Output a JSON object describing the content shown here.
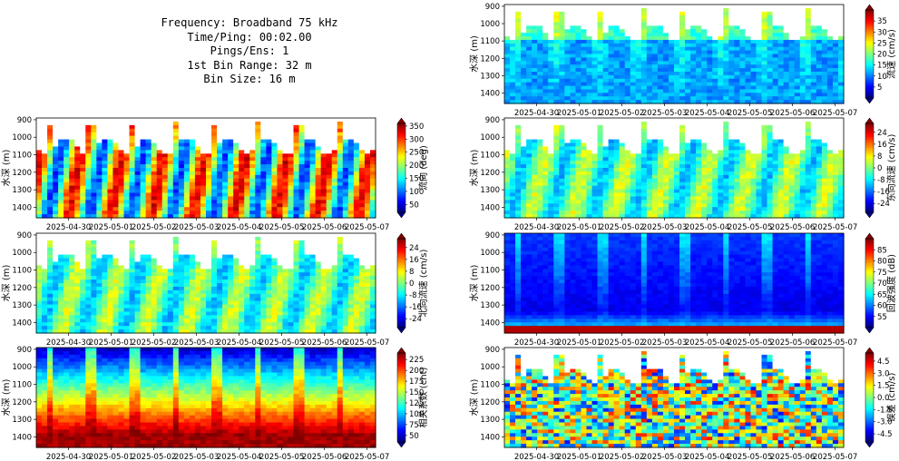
{
  "info": {
    "lines": [
      "Frequency: Broadband 75 kHz",
      "Time/Ping: 00:02.00",
      "Pings/Ens: 1",
      "1st Bin Range: 32 m",
      "Bin Size: 16 m"
    ]
  },
  "chart_data": [
    {
      "type": "heatmap",
      "id": "speed",
      "colormap": "jet",
      "ylabel": "水深 (m)",
      "cbar_label": "流速 (cm/s)",
      "x_ticks": [
        "2025-04-30",
        "2025-05-01",
        "2025-05-02",
        "2025-05-03",
        "2025-05-04",
        "2025-05-05",
        "2025-05-06",
        "2025-05-07"
      ],
      "y_ticks": [
        900,
        1000,
        1100,
        1200,
        1300,
        1400
      ],
      "ylim": [
        1460,
        890
      ],
      "cbar_ticks": [
        "5",
        "10",
        "15",
        "20",
        "25",
        "30",
        "35"
      ],
      "cbar_range": [
        0,
        40
      ],
      "cbar_extend": "both",
      "dominant": "blue-cyan, gaps at top"
    },
    {
      "type": "heatmap",
      "id": "direction",
      "colormap": "jet",
      "ylabel": "水深 (m)",
      "cbar_label": "流向 (deg)",
      "x_ticks": [
        "2025-04-30",
        "2025-05-01",
        "2025-05-02",
        "2025-05-03",
        "2025-05-04",
        "2025-05-05",
        "2025-05-06",
        "2025-05-07"
      ],
      "y_ticks": [
        900,
        1000,
        1100,
        1200,
        1300,
        1400
      ],
      "ylim": [
        1460,
        890
      ],
      "cbar_ticks": [
        "50",
        "100",
        "150",
        "200",
        "250",
        "300",
        "350"
      ],
      "cbar_range": [
        20,
        360
      ],
      "cbar_extend": "both",
      "dominant": "mixed"
    },
    {
      "type": "heatmap",
      "id": "east",
      "colormap": "jet",
      "ylabel": "水深 (m)",
      "cbar_label": "东向流速 (cm/s)",
      "x_ticks": [
        "2025-04-30",
        "2025-05-01",
        "2025-05-02",
        "2025-05-03",
        "2025-05-04",
        "2025-05-05",
        "2025-05-06",
        "2025-05-07"
      ],
      "y_ticks": [
        900,
        1000,
        1100,
        1200,
        1300,
        1400
      ],
      "ylim": [
        1460,
        890
      ],
      "cbar_ticks": [
        "-24",
        "-16",
        "-8",
        "0",
        "8",
        "16",
        "24"
      ],
      "cbar_range": [
        -30,
        30
      ],
      "cbar_extend": "both",
      "dominant": "cyan-green"
    },
    {
      "type": "heatmap",
      "id": "north",
      "colormap": "jet",
      "ylabel": "水深 (m)",
      "cbar_label": "北向流速 (cm/s)",
      "x_ticks": [
        "2025-04-30",
        "2025-05-01",
        "2025-05-02",
        "2025-05-03",
        "2025-05-04",
        "2025-05-05",
        "2025-05-06",
        "2025-05-07"
      ],
      "y_ticks": [
        900,
        1000,
        1100,
        1200,
        1300,
        1400
      ],
      "ylim": [
        1460,
        890
      ],
      "cbar_ticks": [
        "-24",
        "-16",
        "-8",
        "0",
        "8",
        "16",
        "24"
      ],
      "cbar_range": [
        -30,
        30
      ],
      "cbar_extend": "both",
      "dominant": "cyan-green"
    },
    {
      "type": "heatmap",
      "id": "echo",
      "colormap": "jet",
      "ylabel": "水深 (m)",
      "cbar_label": "回波强度 (dB)",
      "x_ticks": [
        "2025-04-30",
        "2025-05-01",
        "2025-05-02",
        "2025-05-03",
        "2025-05-04",
        "2025-05-05",
        "2025-05-06",
        "2025-05-07"
      ],
      "y_ticks": [
        900,
        1000,
        1100,
        1200,
        1300,
        1400
      ],
      "ylim": [
        1460,
        890
      ],
      "cbar_ticks": [
        "55",
        "60",
        "65",
        "70",
        "75",
        "80",
        "85"
      ],
      "cbar_range": [
        50,
        90
      ],
      "cbar_extend": "both",
      "dominant": "dark blue with red bottom"
    },
    {
      "type": "heatmap",
      "id": "corr",
      "colormap": "jet",
      "ylabel": "水深 (m)",
      "cbar_label": "相关系数 (cnt)",
      "x_ticks": [
        "2025-04-30",
        "2025-05-01",
        "2025-05-02",
        "2025-05-03",
        "2025-05-04",
        "2025-05-05",
        "2025-05-06",
        "2025-05-07"
      ],
      "y_ticks": [
        900,
        1000,
        1100,
        1200,
        1300,
        1400
      ],
      "ylim": [
        1460,
        890
      ],
      "cbar_ticks": [
        "50",
        "75",
        "100",
        "125",
        "150",
        "175",
        "200",
        "225"
      ],
      "cbar_range": [
        35,
        240
      ],
      "cbar_extend": "both",
      "dominant": "blue top, red bottom"
    },
    {
      "type": "heatmap",
      "id": "error",
      "colormap": "jet",
      "ylabel": "水深 (m)",
      "cbar_label": "误差 (cm/s)",
      "x_ticks": [
        "2025-04-30",
        "2025-05-01",
        "2025-05-02",
        "2025-05-03",
        "2025-05-04",
        "2025-05-05",
        "2025-05-06",
        "2025-05-07"
      ],
      "y_ticks": [
        900,
        1000,
        1100,
        1200,
        1300,
        1400
      ],
      "ylim": [
        1460,
        890
      ],
      "cbar_ticks": [
        "-4.5",
        "-3.0",
        "-1.5",
        "0.0",
        "1.5",
        "3.0",
        "4.5"
      ],
      "cbar_range": [
        -5.5,
        5.5
      ],
      "cbar_extend": "both",
      "dominant": "speckled"
    }
  ]
}
